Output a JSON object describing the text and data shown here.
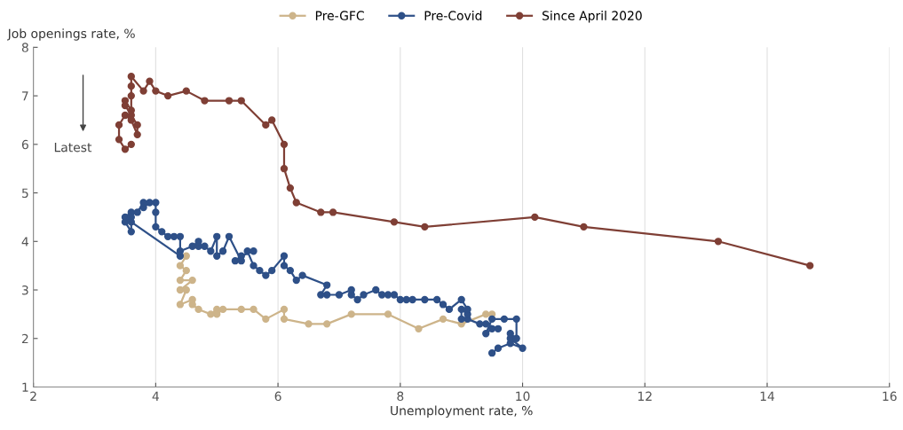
{
  "chart_data": {
    "type": "line",
    "xlabel": "Unemployment rate, %",
    "ylabel": "Job openings rate, %",
    "xlim": [
      2,
      16
    ],
    "xticks": [
      2,
      4,
      6,
      8,
      10,
      12,
      14,
      16
    ],
    "ylim": [
      1,
      8
    ],
    "yticks": [
      1,
      2,
      3,
      4,
      5,
      6,
      7,
      8
    ],
    "grid": "x",
    "legend": "top",
    "marker": "circle",
    "line_style": "solid",
    "annotations": [
      "Latest"
    ],
    "series": [
      {
        "name": "Pre-GFC",
        "color": "#cdb48a",
        "x": [
          4.5,
          4.4,
          4.5,
          4.4,
          4.6,
          4.4,
          4.5,
          4.4,
          4.6,
          4.6,
          4.7,
          4.9,
          5.0,
          5.0,
          5.1,
          5.4,
          5.6,
          5.8,
          6.1,
          6.1,
          6.5,
          6.8,
          7.2,
          7.8,
          8.3,
          8.7,
          9.0,
          9.4,
          9.5
        ],
        "values": [
          3.7,
          3.5,
          3.4,
          3.2,
          3.2,
          3.0,
          3.0,
          2.7,
          2.8,
          2.7,
          2.6,
          2.5,
          2.6,
          2.5,
          2.6,
          2.6,
          2.6,
          2.4,
          2.6,
          2.4,
          2.3,
          2.3,
          2.5,
          2.5,
          2.2,
          2.4,
          2.3,
          2.5,
          2.5
        ]
      },
      {
        "name": "Pre-Covid",
        "color": "#2e5088",
        "x": [
          9.5,
          9.6,
          9.8,
          10.0,
          9.8,
          9.8,
          9.9,
          9.9,
          9.7,
          9.5,
          9.4,
          9.5,
          9.6,
          9.4,
          9.3,
          9.1,
          9.0,
          9.0,
          9.1,
          9.1,
          9.0,
          8.8,
          8.7,
          8.6,
          8.4,
          8.2,
          8.1,
          8.0,
          7.9,
          7.8,
          7.7,
          7.6,
          7.4,
          7.3,
          7.2,
          7.2,
          7.0,
          6.8,
          6.7,
          6.8,
          6.4,
          6.3,
          6.2,
          6.1,
          6.1,
          5.9,
          5.8,
          5.7,
          5.6,
          5.5,
          5.6,
          5.4,
          5.3,
          5.4,
          5.2,
          5.1,
          5.0,
          5.0,
          4.9,
          4.8,
          4.7,
          4.7,
          4.6,
          4.4,
          4.4,
          4.3,
          4.2,
          4.1,
          4.0,
          4.0,
          4.0,
          3.9,
          3.8,
          3.8,
          3.7,
          3.6,
          3.5,
          3.6,
          3.5,
          3.6,
          3.6,
          4.4
        ],
        "values": [
          1.7,
          1.8,
          1.9,
          1.8,
          2.0,
          2.1,
          2.0,
          2.4,
          2.4,
          2.4,
          2.1,
          2.2,
          2.2,
          2.3,
          2.3,
          2.4,
          2.4,
          2.6,
          2.5,
          2.6,
          2.8,
          2.6,
          2.7,
          2.8,
          2.8,
          2.8,
          2.8,
          2.8,
          2.9,
          2.9,
          2.9,
          3.0,
          2.9,
          2.8,
          2.9,
          3.0,
          2.9,
          2.9,
          2.9,
          3.1,
          3.3,
          3.2,
          3.4,
          3.5,
          3.7,
          3.4,
          3.3,
          3.4,
          3.5,
          3.8,
          3.8,
          3.7,
          3.6,
          3.6,
          4.1,
          3.8,
          3.7,
          4.1,
          3.8,
          3.9,
          3.9,
          4.0,
          3.9,
          3.8,
          4.1,
          4.1,
          4.1,
          4.2,
          4.3,
          4.6,
          4.8,
          4.8,
          4.7,
          4.8,
          4.6,
          4.6,
          4.5,
          4.5,
          4.4,
          4.2,
          4.4,
          3.7
        ]
      },
      {
        "name": "Since April 2020",
        "color": "#7f3f35",
        "x": [
          14.7,
          13.2,
          11.0,
          10.2,
          8.4,
          7.9,
          6.9,
          6.7,
          6.3,
          6.2,
          6.1,
          6.1,
          5.9,
          5.8,
          5.4,
          5.2,
          4.8,
          4.5,
          4.2,
          4.0,
          3.9,
          3.8,
          3.6,
          3.6,
          3.6,
          3.6,
          3.5,
          3.5,
          3.6,
          3.7,
          3.7,
          3.6,
          3.5,
          3.4,
          3.4,
          3.5,
          3.6
        ],
        "values": [
          3.5,
          4.0,
          4.3,
          4.5,
          4.3,
          4.4,
          4.6,
          4.6,
          4.8,
          5.1,
          5.5,
          6.0,
          6.5,
          6.4,
          6.9,
          6.9,
          6.9,
          7.1,
          7.0,
          7.1,
          7.3,
          7.1,
          7.4,
          7.2,
          7.0,
          6.7,
          6.9,
          6.8,
          6.6,
          6.4,
          6.2,
          6.5,
          6.6,
          6.4,
          6.1,
          5.9,
          6.0
        ]
      }
    ]
  }
}
